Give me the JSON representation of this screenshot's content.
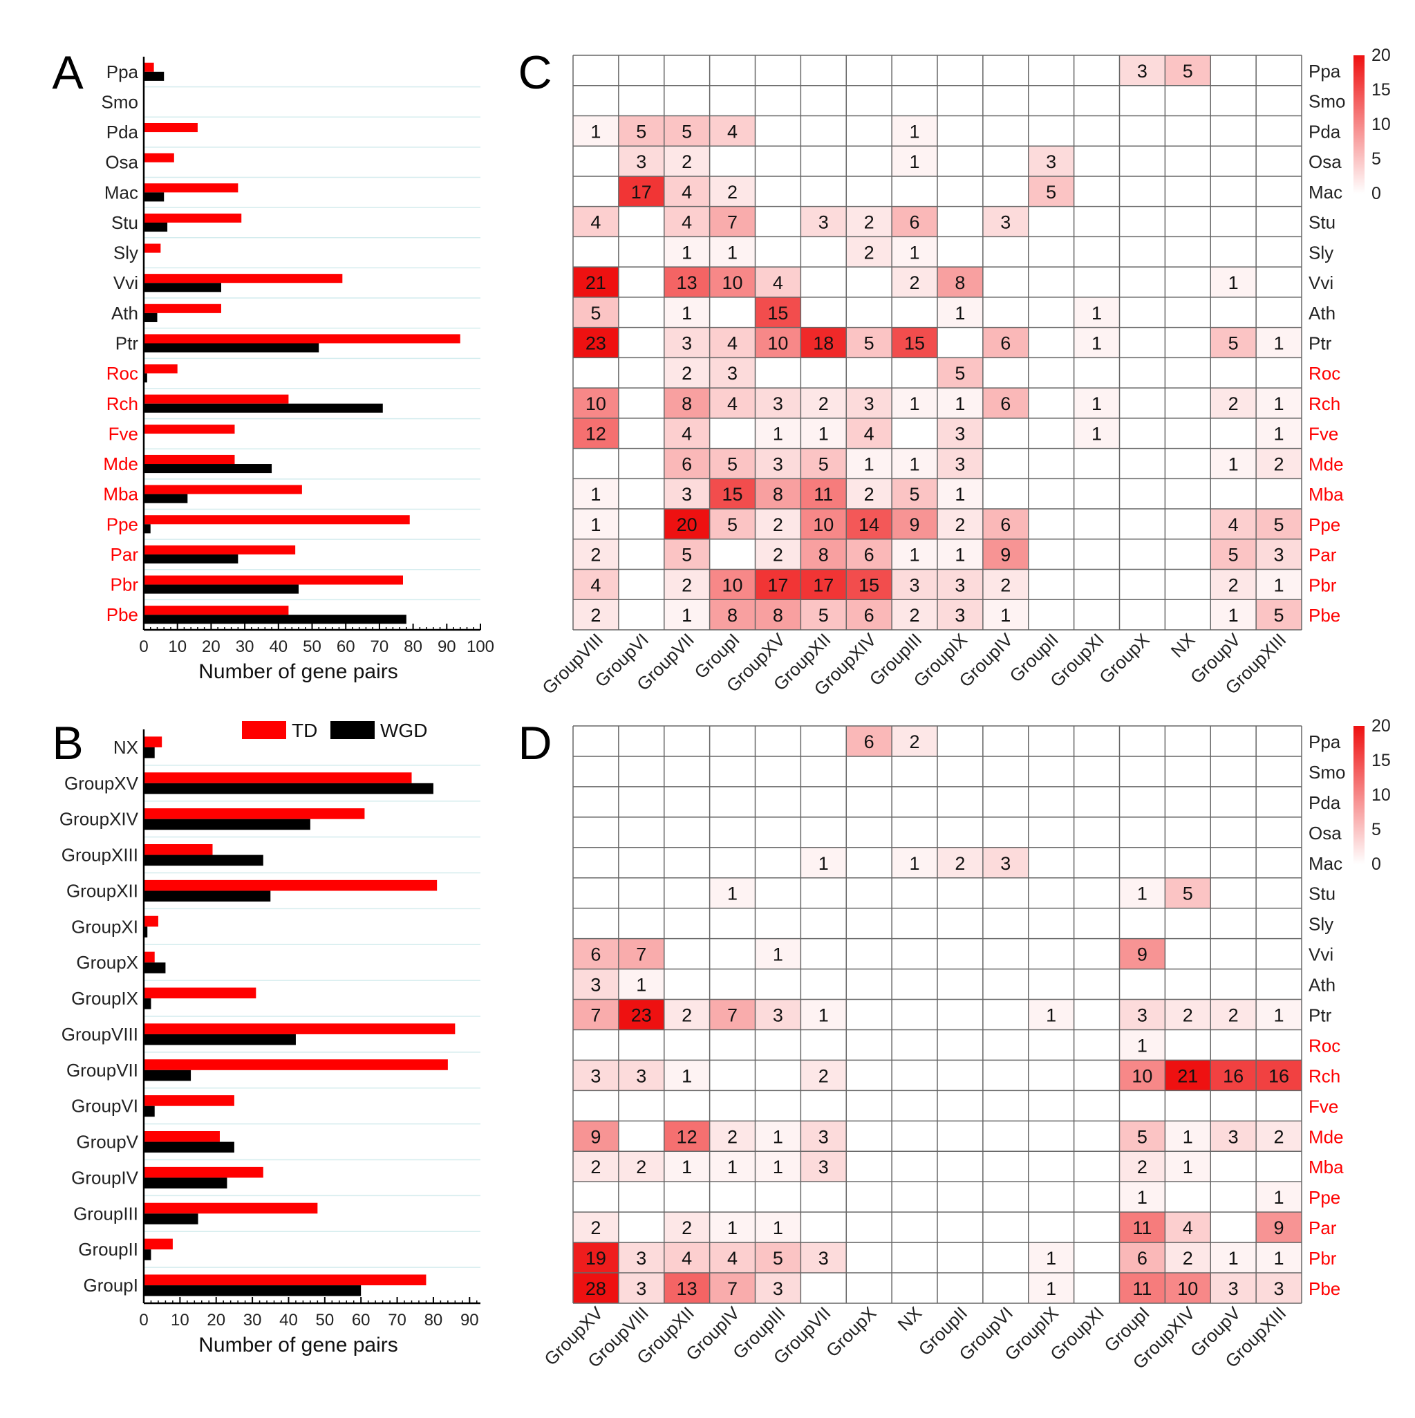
{
  "colors": {
    "td": "#ff0000",
    "wgd": "#000000",
    "red_label": "#ff0000",
    "black_label": "#222222",
    "heat_max": "#ee1111",
    "heat_min": "#ffffff",
    "grid": "#666666",
    "row_guide": "#d4ecee"
  },
  "chart_data": [
    {
      "panel": "A",
      "type": "bar",
      "orientation": "horizontal",
      "categories": [
        "Ppa",
        "Smo",
        "Pda",
        "Osa",
        "Mac",
        "Stu",
        "Sly",
        "Vvi",
        "Ath",
        "Ptr",
        "Roc",
        "Rch",
        "Fve",
        "Mde",
        "Mba",
        "Ppe",
        "Par",
        "Pbr",
        "Pbe"
      ],
      "category_colors": [
        "black",
        "black",
        "black",
        "black",
        "black",
        "black",
        "black",
        "black",
        "black",
        "black",
        "red",
        "red",
        "red",
        "red",
        "red",
        "red",
        "red",
        "red",
        "red"
      ],
      "series": [
        {
          "name": "TD",
          "values": [
            3,
            0,
            16,
            9,
            28,
            29,
            5,
            59,
            23,
            94,
            10,
            43,
            27,
            27,
            47,
            79,
            45,
            77,
            43
          ]
        },
        {
          "name": "WGD",
          "values": [
            6,
            0,
            0,
            0,
            6,
            7,
            0,
            23,
            4,
            52,
            1,
            71,
            0,
            38,
            13,
            2,
            28,
            46,
            78
          ]
        }
      ],
      "xlabel": "Number of gene pairs",
      "ylabel": "",
      "xlim": [
        0,
        100
      ],
      "ticks": [
        0,
        10,
        20,
        30,
        40,
        50,
        60,
        70,
        80,
        90,
        100
      ]
    },
    {
      "panel": "B",
      "type": "bar",
      "orientation": "horizontal",
      "categories": [
        "NX",
        "GroupXV",
        "GroupXIV",
        "GroupXIII",
        "GroupXII",
        "GroupXI",
        "GroupX",
        "GroupIX",
        "GroupVIII",
        "GroupVII",
        "GroupVI",
        "GroupV",
        "GroupIV",
        "GroupIII",
        "GroupII",
        "GroupI"
      ],
      "series": [
        {
          "name": "TD",
          "values": [
            5,
            74,
            61,
            19,
            81,
            4,
            3,
            31,
            86,
            84,
            25,
            21,
            33,
            48,
            8,
            78
          ]
        },
        {
          "name": "WGD",
          "values": [
            3,
            80,
            46,
            33,
            35,
            1,
            6,
            2,
            42,
            13,
            3,
            25,
            23,
            15,
            2,
            60
          ]
        }
      ],
      "xlabel": "Number of gene pairs",
      "ylabel": "",
      "xlim": [
        0,
        93
      ],
      "ticks": [
        0,
        10,
        20,
        30,
        40,
        50,
        60,
        70,
        80,
        90
      ],
      "legend": [
        "TD",
        "WGD"
      ],
      "legend_position": "top"
    },
    {
      "panel": "C",
      "type": "heatmap",
      "columns": [
        "GroupVIII",
        "GroupVI",
        "GroupVII",
        "GroupI",
        "GroupXV",
        "GroupXII",
        "GroupXIV",
        "GroupIII",
        "GroupIX",
        "GroupIV",
        "GroupII",
        "GroupXI",
        "GroupX",
        "NX",
        "GroupV",
        "GroupXIII"
      ],
      "rows": [
        "Ppa",
        "Smo",
        "Pda",
        "Osa",
        "Mac",
        "Stu",
        "Sly",
        "Vvi",
        "Ath",
        "Ptr",
        "Roc",
        "Rch",
        "Fve",
        "Mde",
        "Mba",
        "Ppe",
        "Par",
        "Pbr",
        "Pbe"
      ],
      "values": [
        [
          null,
          null,
          null,
          null,
          null,
          null,
          null,
          null,
          null,
          null,
          null,
          null,
          3,
          5,
          null,
          null
        ],
        [
          null,
          null,
          null,
          null,
          null,
          null,
          null,
          null,
          null,
          null,
          null,
          null,
          null,
          null,
          null,
          null
        ],
        [
          1,
          5,
          5,
          4,
          null,
          null,
          null,
          1,
          null,
          null,
          null,
          null,
          null,
          null,
          null,
          null
        ],
        [
          null,
          3,
          2,
          null,
          null,
          null,
          null,
          1,
          null,
          null,
          3,
          null,
          null,
          null,
          null,
          null
        ],
        [
          null,
          17,
          4,
          2,
          null,
          null,
          null,
          null,
          null,
          null,
          5,
          null,
          null,
          null,
          null,
          null
        ],
        [
          4,
          null,
          4,
          7,
          null,
          3,
          2,
          6,
          null,
          3,
          null,
          null,
          null,
          null,
          null,
          null
        ],
        [
          null,
          null,
          1,
          1,
          null,
          null,
          2,
          1,
          null,
          null,
          null,
          null,
          null,
          null,
          null,
          null
        ],
        [
          21,
          null,
          13,
          10,
          4,
          null,
          null,
          2,
          8,
          null,
          null,
          null,
          null,
          null,
          1,
          null
        ],
        [
          5,
          null,
          1,
          null,
          15,
          null,
          null,
          null,
          1,
          null,
          null,
          1,
          null,
          null,
          null,
          null
        ],
        [
          23,
          null,
          3,
          4,
          10,
          18,
          5,
          15,
          null,
          6,
          null,
          1,
          null,
          null,
          5,
          1
        ],
        [
          null,
          null,
          2,
          3,
          null,
          null,
          null,
          null,
          5,
          null,
          null,
          null,
          null,
          null,
          null,
          null
        ],
        [
          10,
          null,
          8,
          4,
          3,
          2,
          3,
          1,
          1,
          6,
          null,
          1,
          null,
          null,
          2,
          1
        ],
        [
          12,
          null,
          4,
          null,
          1,
          1,
          4,
          null,
          3,
          null,
          null,
          1,
          null,
          null,
          null,
          1
        ],
        [
          null,
          null,
          6,
          5,
          3,
          5,
          1,
          1,
          3,
          null,
          null,
          null,
          null,
          null,
          1,
          2
        ],
        [
          1,
          null,
          3,
          15,
          8,
          11,
          2,
          5,
          1,
          null,
          null,
          null,
          null,
          null,
          null,
          null
        ],
        [
          1,
          null,
          20,
          5,
          2,
          10,
          14,
          9,
          2,
          6,
          null,
          null,
          null,
          null,
          4,
          5
        ],
        [
          2,
          null,
          5,
          null,
          2,
          8,
          6,
          1,
          1,
          9,
          null,
          null,
          null,
          null,
          5,
          3
        ],
        [
          4,
          null,
          2,
          10,
          17,
          17,
          15,
          3,
          3,
          2,
          null,
          null,
          null,
          null,
          2,
          1
        ],
        [
          2,
          null,
          1,
          8,
          8,
          5,
          6,
          2,
          3,
          1,
          null,
          null,
          null,
          null,
          1,
          5
        ]
      ],
      "color_scale": {
        "min": 0,
        "max": 20,
        "ticks": [
          20,
          15,
          10,
          5,
          0
        ]
      }
    },
    {
      "panel": "D",
      "type": "heatmap",
      "columns": [
        "GroupXV",
        "GroupVIII",
        "GroupXII",
        "GroupIV",
        "GroupIII",
        "GroupVII",
        "GroupX",
        "NX",
        "GroupII",
        "GroupVI",
        "GroupIX",
        "GroupXI",
        "GroupI",
        "GroupXIV",
        "GroupV",
        "GroupXIII"
      ],
      "rows": [
        "Ppa",
        "Smo",
        "Pda",
        "Osa",
        "Mac",
        "Stu",
        "Sly",
        "Vvi",
        "Ath",
        "Ptr",
        "Roc",
        "Rch",
        "Fve",
        "Mde",
        "Mba",
        "Ppe",
        "Par",
        "Pbr",
        "Pbe"
      ],
      "values": [
        [
          null,
          null,
          null,
          null,
          null,
          null,
          6,
          2,
          null,
          null,
          null,
          null,
          null,
          null,
          null,
          null
        ],
        [
          null,
          null,
          null,
          null,
          null,
          null,
          null,
          null,
          null,
          null,
          null,
          null,
          null,
          null,
          null,
          null
        ],
        [
          null,
          null,
          null,
          null,
          null,
          null,
          null,
          null,
          null,
          null,
          null,
          null,
          null,
          null,
          null,
          null
        ],
        [
          null,
          null,
          null,
          null,
          null,
          null,
          null,
          null,
          null,
          null,
          null,
          null,
          null,
          null,
          null,
          null
        ],
        [
          null,
          null,
          null,
          null,
          null,
          1,
          null,
          1,
          2,
          3,
          null,
          null,
          null,
          null,
          null,
          null
        ],
        [
          null,
          null,
          null,
          1,
          null,
          null,
          null,
          null,
          null,
          null,
          null,
          null,
          1,
          5,
          null,
          null
        ],
        [
          null,
          null,
          null,
          null,
          null,
          null,
          null,
          null,
          null,
          null,
          null,
          null,
          null,
          null,
          null,
          null
        ],
        [
          6,
          7,
          null,
          null,
          1,
          null,
          null,
          null,
          null,
          null,
          null,
          null,
          9,
          null,
          null,
          null
        ],
        [
          3,
          1,
          null,
          null,
          null,
          null,
          null,
          null,
          null,
          null,
          null,
          null,
          null,
          null,
          null,
          null
        ],
        [
          7,
          23,
          2,
          7,
          3,
          1,
          null,
          null,
          null,
          null,
          1,
          null,
          3,
          2,
          2,
          1
        ],
        [
          null,
          null,
          null,
          null,
          null,
          null,
          null,
          null,
          null,
          null,
          null,
          null,
          1,
          null,
          null,
          null
        ],
        [
          3,
          3,
          1,
          null,
          null,
          2,
          null,
          null,
          null,
          null,
          null,
          null,
          10,
          21,
          16,
          16
        ],
        [
          null,
          null,
          null,
          null,
          null,
          null,
          null,
          null,
          null,
          null,
          null,
          null,
          null,
          null,
          null,
          null
        ],
        [
          9,
          null,
          12,
          2,
          1,
          3,
          null,
          null,
          null,
          null,
          null,
          null,
          5,
          1,
          3,
          2
        ],
        [
          2,
          2,
          1,
          1,
          1,
          3,
          null,
          null,
          null,
          null,
          null,
          null,
          2,
          1,
          null,
          null
        ],
        [
          null,
          null,
          null,
          null,
          null,
          null,
          null,
          null,
          null,
          null,
          null,
          null,
          1,
          null,
          null,
          1
        ],
        [
          2,
          null,
          2,
          1,
          1,
          null,
          null,
          null,
          null,
          null,
          null,
          null,
          11,
          4,
          null,
          9
        ],
        [
          19,
          3,
          4,
          4,
          5,
          3,
          null,
          null,
          null,
          null,
          1,
          null,
          6,
          2,
          1,
          1
        ],
        [
          28,
          3,
          13,
          7,
          3,
          null,
          null,
          null,
          null,
          null,
          1,
          null,
          11,
          10,
          3,
          3
        ]
      ],
      "color_scale": {
        "min": 0,
        "max": 20,
        "ticks": [
          20,
          15,
          10,
          5,
          0
        ]
      }
    }
  ]
}
